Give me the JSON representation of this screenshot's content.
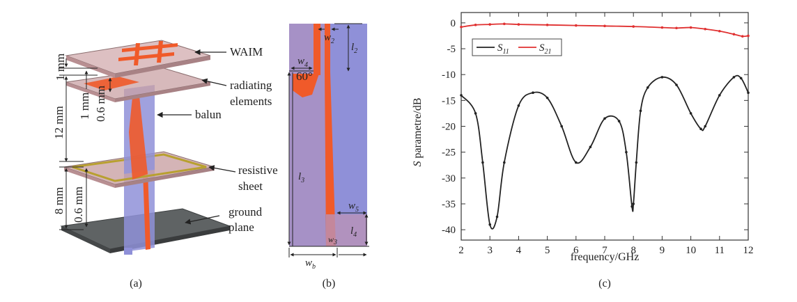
{
  "panel_a": {
    "caption": "(a)",
    "labels": {
      "waim": "WAIM",
      "radiating": "radiating",
      "elements": "elements",
      "balun": "balun",
      "resistive": "resistive",
      "sheet": "sheet",
      "ground": "ground",
      "plane": "plane"
    },
    "dims": {
      "d1": "1 mm",
      "d2": "1 mm",
      "d3": "0.6 mm",
      "d4": "12 mm",
      "d5": "0.6 mm",
      "d6": "8 mm"
    },
    "colors": {
      "substrate": "#c9a1a4",
      "balun": "#8f90d8",
      "metal": "#f05a2a",
      "ground": "#6b6f70",
      "sheet_border": "#b8a030"
    }
  },
  "panel_b": {
    "caption": "(b)",
    "angle": "60°",
    "dims": [
      {
        "base": "w",
        "sub": "4"
      },
      {
        "base": "w",
        "sub": "2"
      },
      {
        "base": "l",
        "sub": "2"
      },
      {
        "base": "l",
        "sub": "3"
      },
      {
        "base": "w",
        "sub": "5"
      },
      {
        "base": "l",
        "sub": "4"
      },
      {
        "base": "w",
        "sub": "3"
      },
      {
        "base": "w",
        "sub": "b"
      }
    ]
  },
  "panel_c": {
    "caption": "(c)",
    "colors": {
      "s11": "#222222",
      "s21": "#e03030"
    }
  },
  "chart_data": {
    "type": "line",
    "xlabel": "frequency/GHz",
    "ylabel_italic": "S",
    "ylabel_rest": " parametre/dB",
    "xlim": [
      2,
      12
    ],
    "ylim": [
      -42,
      2
    ],
    "xticks": [
      2,
      3,
      4,
      5,
      6,
      7,
      8,
      9,
      10,
      11,
      12
    ],
    "yticks": [
      0,
      -5,
      -10,
      -15,
      -20,
      -25,
      -30,
      -35,
      -40
    ],
    "legend_position": "top-left",
    "series": [
      {
        "name_base": "S",
        "name_sub": "11",
        "x": [
          2.0,
          2.5,
          2.75,
          3.0,
          3.25,
          3.5,
          4.0,
          4.5,
          5.0,
          5.5,
          6.0,
          6.5,
          7.0,
          7.5,
          7.75,
          7.95,
          8.0,
          8.1,
          8.25,
          8.5,
          9.0,
          9.5,
          10.0,
          10.35,
          10.5,
          11.0,
          11.5,
          11.75,
          12.0
        ],
        "values": [
          -14.0,
          -17.5,
          -27.0,
          -39.0,
          -37.5,
          -27.0,
          -16.0,
          -13.5,
          -14.5,
          -20.0,
          -27.0,
          -24.0,
          -18.5,
          -19.0,
          -25.0,
          -35.5,
          -35.0,
          -27.0,
          -17.0,
          -12.5,
          -10.5,
          -12.0,
          -17.5,
          -20.5,
          -20.0,
          -14.0,
          -10.5,
          -10.7,
          -13.5
        ]
      },
      {
        "name_base": "S",
        "name_sub": "21",
        "x": [
          2.0,
          2.5,
          3.0,
          3.5,
          4.0,
          5.0,
          6.0,
          7.0,
          8.0,
          9.0,
          9.5,
          10.0,
          10.5,
          11.0,
          11.5,
          11.8,
          12.0
        ],
        "values": [
          -0.8,
          -0.4,
          -0.3,
          -0.2,
          -0.3,
          -0.4,
          -0.5,
          -0.6,
          -0.7,
          -0.9,
          -1.0,
          -0.9,
          -1.2,
          -1.6,
          -2.2,
          -2.6,
          -2.5
        ]
      }
    ]
  }
}
